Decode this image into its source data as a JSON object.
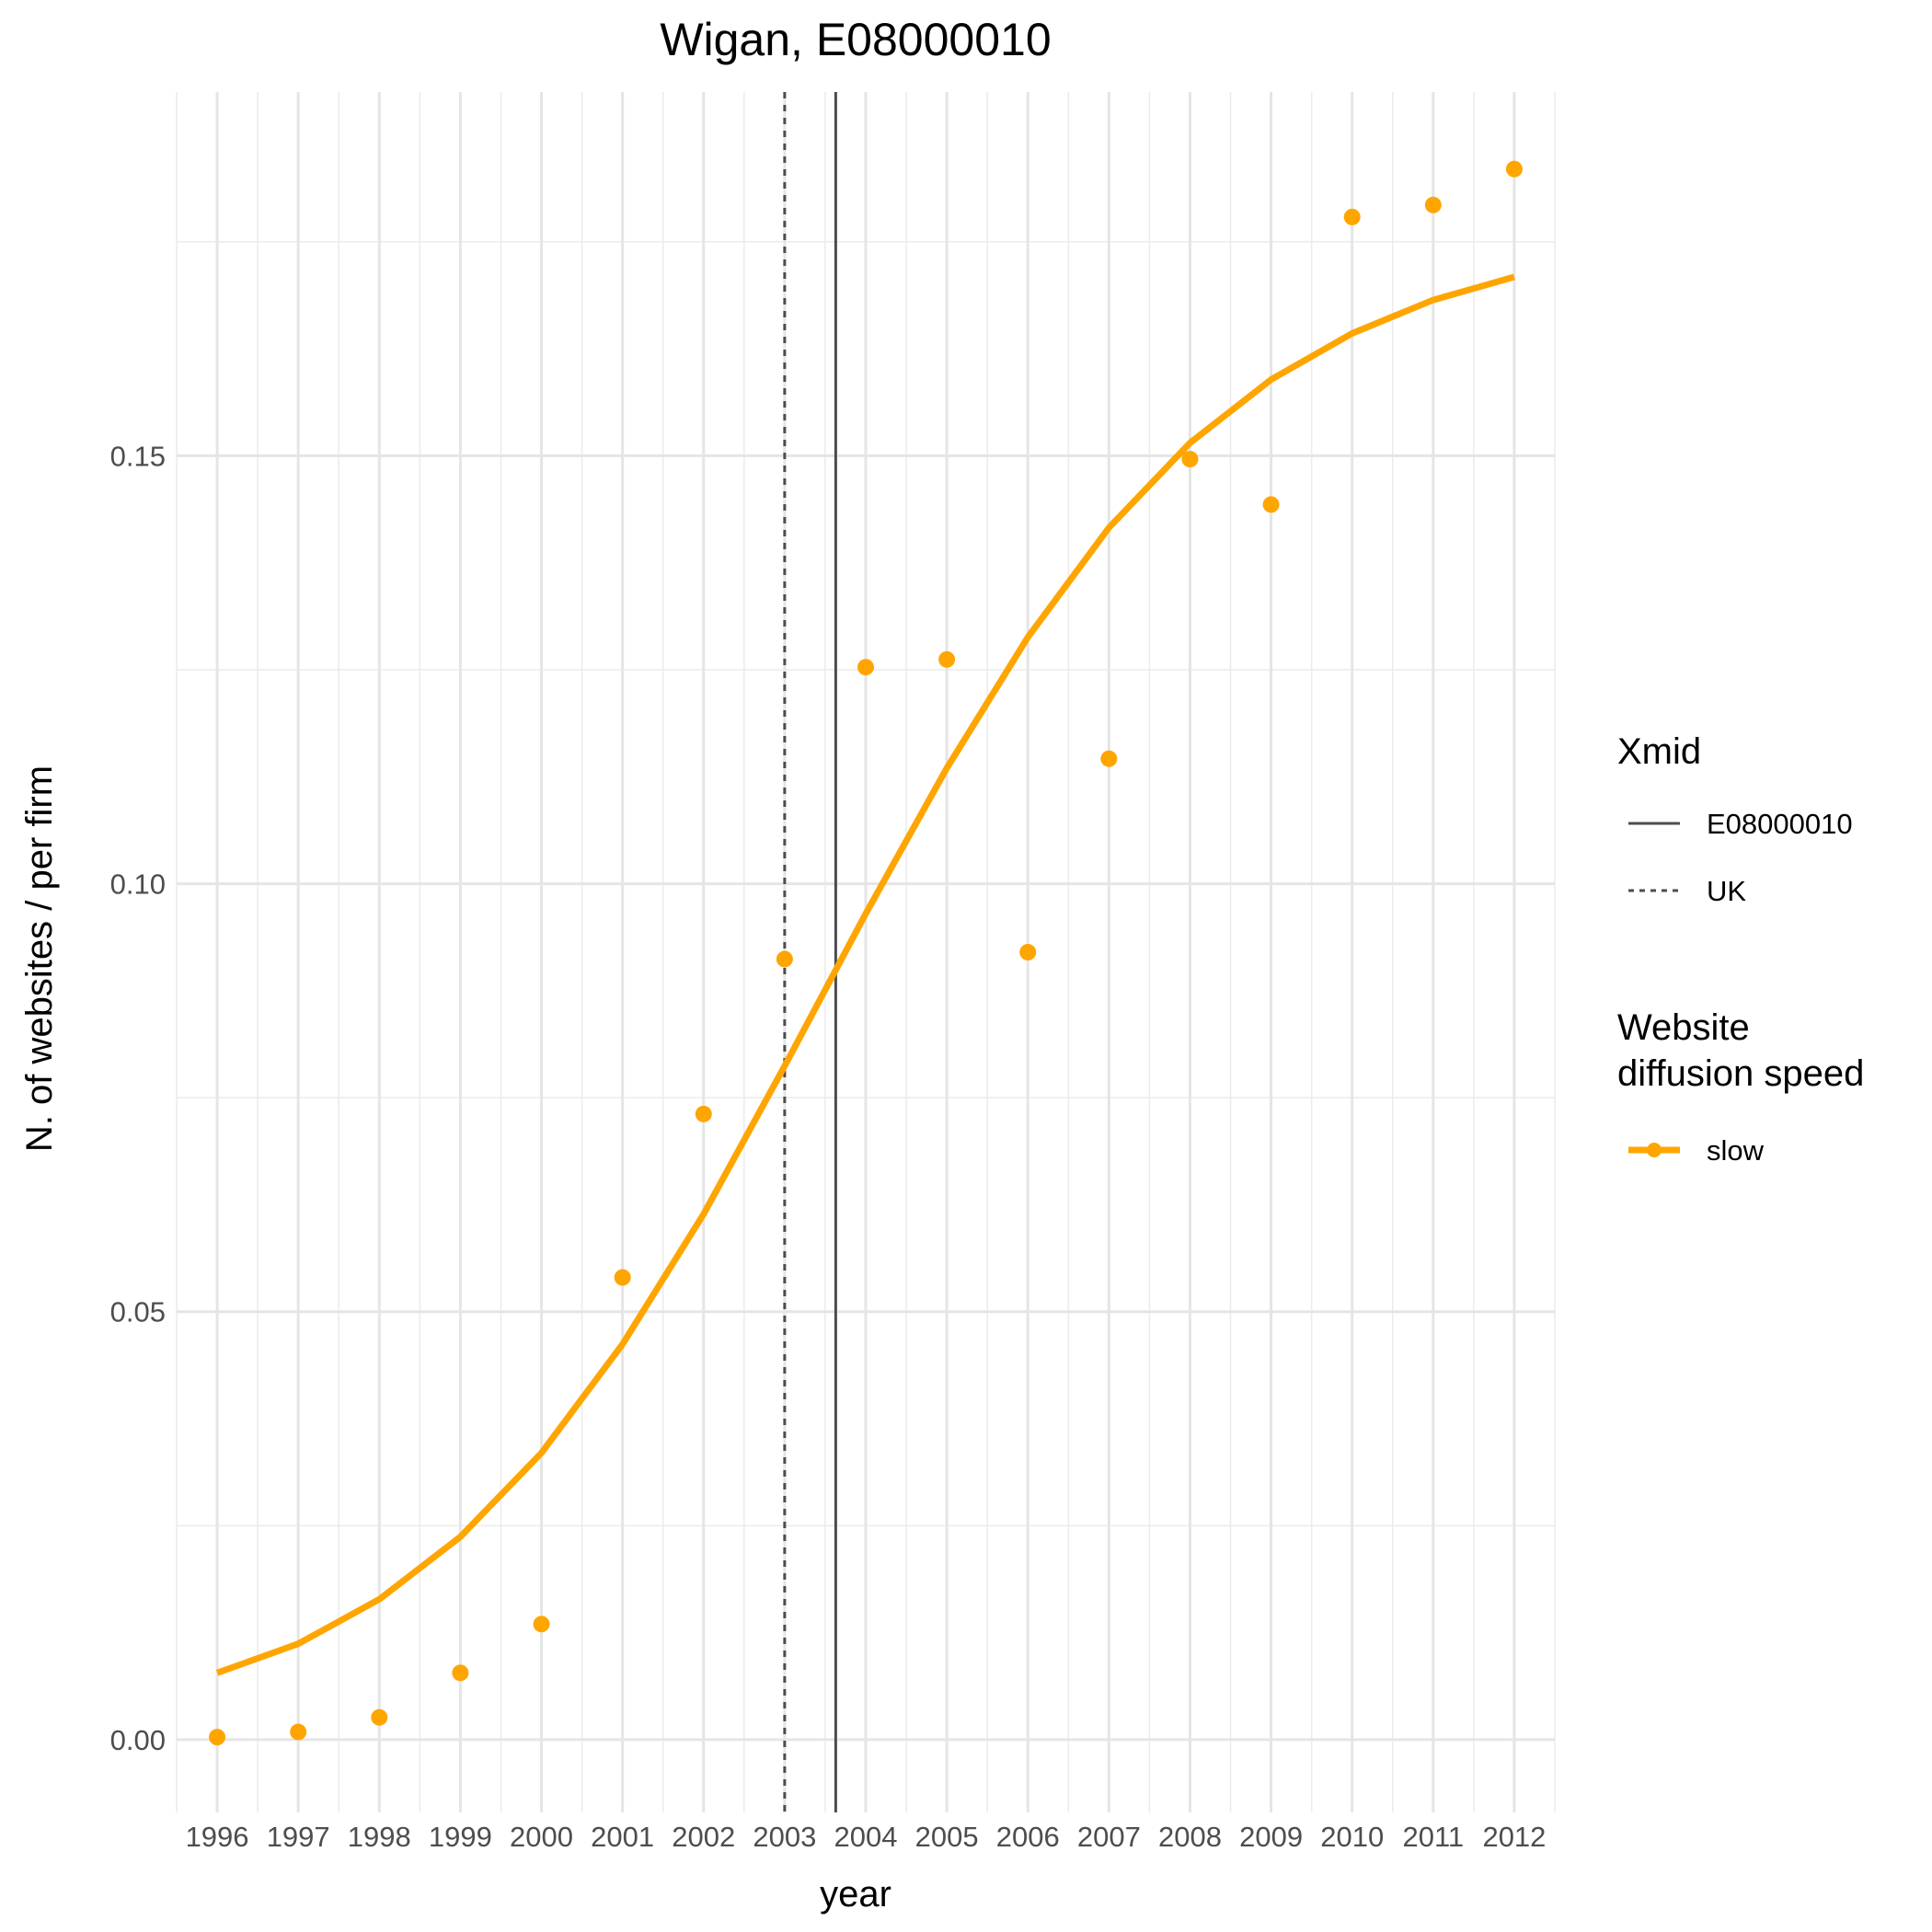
{
  "chart_data": {
    "type": "line",
    "title": "Wigan, E08000010",
    "xlabel": "year",
    "ylabel": "N. of websites / per firm",
    "x": [
      1996,
      1997,
      1998,
      1999,
      2000,
      2001,
      2002,
      2003,
      2004,
      2005,
      2006,
      2007,
      2008,
      2009,
      2010,
      2011,
      2012
    ],
    "x_tick_labels": [
      "1996",
      "1997",
      "1998",
      "1999",
      "2000",
      "2001",
      "2002",
      "2003",
      "2004",
      "2005",
      "2006",
      "2007",
      "2008",
      "2009",
      "2010",
      "2011",
      "2012"
    ],
    "xlim": [
      1995.5,
      2012.5
    ],
    "ylim": [
      -0.0085,
      0.1925
    ],
    "y_ticks": [
      0.0,
      0.05,
      0.1,
      0.15
    ],
    "y_tick_labels": [
      "0.00",
      "0.05",
      "0.10",
      "0.15"
    ],
    "grid": true,
    "series": [
      {
        "name": "slow",
        "color": "#FFA500",
        "points": [
          0.0003,
          0.0009,
          0.0026,
          0.0078,
          0.0135,
          0.054,
          0.0731,
          0.0912,
          0.1253,
          0.1262,
          0.092,
          0.1146,
          0.1496,
          0.1443,
          0.1779,
          0.1793,
          0.1835
        ],
        "fitted": [
          0.0078,
          0.0112,
          0.0164,
          0.0237,
          0.0335,
          0.0462,
          0.0614,
          0.0787,
          0.0965,
          0.1135,
          0.1288,
          0.1416,
          0.1515,
          0.1589,
          0.1643,
          0.1682,
          0.1709
        ]
      }
    ],
    "vlines": [
      {
        "name": "E08000010",
        "x": 2003.63,
        "style": "solid",
        "color": "#4d4d4d"
      },
      {
        "name": "UK",
        "x": 2003.0,
        "style": "dashed",
        "color": "#4d4d4d"
      }
    ],
    "legends": {
      "placement": "right",
      "xmid": {
        "title": "Xmid",
        "items": [
          {
            "label": "E08000010",
            "style": "solid"
          },
          {
            "label": "UK",
            "style": "dashed"
          }
        ]
      },
      "speed": {
        "title_lines": [
          "Website",
          "diffusion speed"
        ],
        "items": [
          {
            "label": "slow",
            "color": "#FFA500"
          }
        ]
      }
    }
  }
}
